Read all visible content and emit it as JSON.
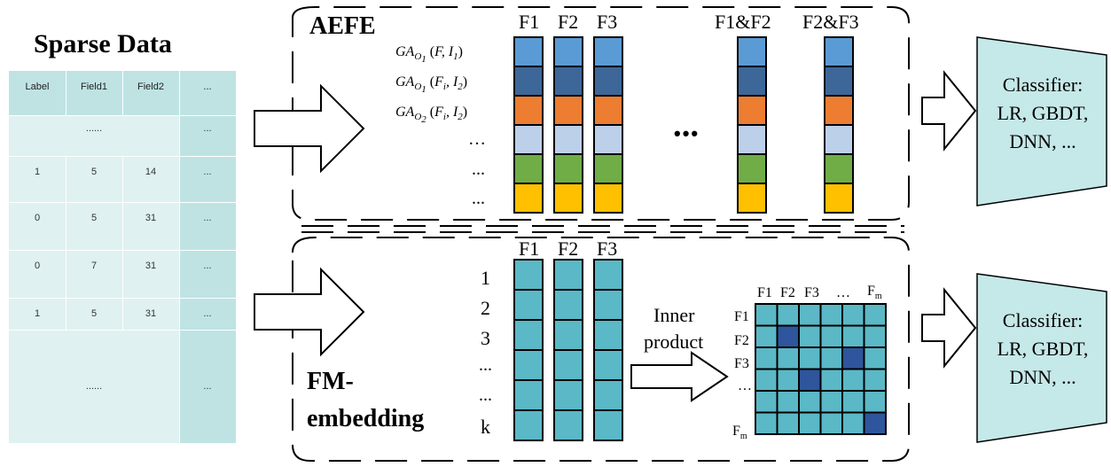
{
  "sparse_data": {
    "title": "Sparse Data",
    "headers": [
      "Label",
      "Field1",
      "Field2",
      "..."
    ],
    "ellipsis_row_text": "......",
    "ellipsis_col": "...",
    "rows": [
      [
        "1",
        "5",
        "14"
      ],
      [
        "0",
        "5",
        "31"
      ],
      [
        "0",
        "7",
        "31"
      ],
      [
        "1",
        "5",
        "31"
      ]
    ]
  },
  "aefe": {
    "title": "AEFE",
    "column_labels": [
      "F1",
      "F2",
      "F3",
      "F1&F2",
      "F2&F3"
    ],
    "row_labels": [
      "GA_O1 (F, I1)",
      "GA_O1 (Fi, I2)",
      "GA_O2 (Fi, I2)",
      "…",
      "...",
      "..."
    ],
    "dots": "•••",
    "row_colors": [
      "#5b9bd5",
      "#3d6799",
      "#ed7d31",
      "#bdd0ea",
      "#70ad47",
      "#ffc000"
    ]
  },
  "fm": {
    "title_line1": "FM-",
    "title_line2": "embedding",
    "column_labels": [
      "F1",
      "F2",
      "F3"
    ],
    "row_labels": [
      "1",
      "2",
      "3",
      "...",
      "...",
      "k"
    ],
    "inner_product_line1": "Inner",
    "inner_product_line2": "product",
    "matrix_header": [
      "F1",
      "F2",
      "F3",
      "…",
      "F"
    ],
    "matrix_header_sub": "m",
    "matrix_rows": [
      "F1",
      "F2",
      "F3",
      "…",
      "",
      "F"
    ],
    "matrix_row_sub": "m",
    "cell_color": "#5bb8c6",
    "highlight_color": "#2f559c"
  },
  "classifier": {
    "line1": "Classifier:",
    "line2": "LR, GBDT,",
    "line3": "DNN, ..."
  },
  "colors": {
    "table_fill": "#c9e8e8",
    "classifier_fill": "#c5e8e8",
    "fm_cell": "#5bb8c6"
  }
}
